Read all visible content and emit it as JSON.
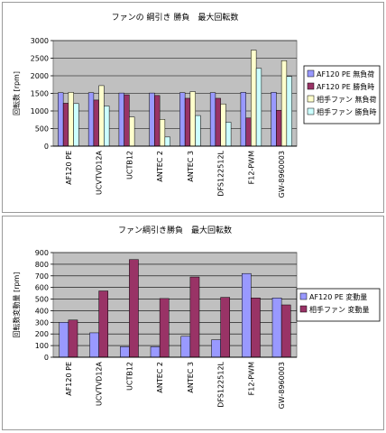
{
  "chart_data": [
    {
      "type": "bar",
      "title": "ファンの 綱引き 勝負　最大回転数",
      "ylabel": "回転数 [rpm]",
      "xlabel": "",
      "ylim": [
        0,
        3000
      ],
      "yticks": [
        0,
        500,
        1000,
        1500,
        2000,
        2500,
        3000
      ],
      "grid": true,
      "legend_position": "right",
      "categories": [
        "AF120 PE",
        "UCVTVD12A",
        "UCTB12",
        "ANTEC 2",
        "ANTEC 3",
        "DFS122512L",
        "F12-PWM",
        "GW-8960003"
      ],
      "series": [
        {
          "name": "AF120 PE 無負荷",
          "color": "#9999ff",
          "values": [
            1520,
            1520,
            1510,
            1510,
            1520,
            1520,
            1530,
            1530
          ]
        },
        {
          "name": "AF120 PE 勝負時",
          "color": "#993366",
          "values": [
            1220,
            1310,
            1460,
            1440,
            1360,
            1360,
            800,
            1020
          ]
        },
        {
          "name": "相手ファン 無負荷",
          "color": "#ffffcc",
          "values": [
            1530,
            1720,
            830,
            760,
            1550,
            1200,
            2730,
            2430
          ]
        },
        {
          "name": "相手ファン 勝負時",
          "color": "#ccffff",
          "values": [
            1210,
            1140,
            null,
            260,
            870,
            680,
            2210,
            1980
          ]
        }
      ]
    },
    {
      "type": "bar",
      "title": "ファン綱引き勝負　最大回転数",
      "ylabel": "回転数変動量 [rpm]",
      "xlabel": "",
      "ylim": [
        0,
        900
      ],
      "yticks": [
        0,
        100,
        200,
        300,
        400,
        500,
        600,
        700,
        800,
        900
      ],
      "grid": true,
      "legend_position": "right",
      "categories": [
        "AF120 PE",
        "UCVTVD12A",
        "UCTB12",
        "ANTEC 2",
        "ANTEC 3",
        "DFS122512L",
        "F12-PWM",
        "GW-8960003"
      ],
      "series": [
        {
          "name": "AF120 PE 変動量",
          "color": "#9999ff",
          "values": [
            300,
            210,
            90,
            90,
            180,
            150,
            720,
            510
          ]
        },
        {
          "name": "相手ファン 変動量",
          "color": "#993366",
          "values": [
            320,
            570,
            840,
            505,
            690,
            515,
            510,
            450
          ]
        }
      ]
    }
  ]
}
